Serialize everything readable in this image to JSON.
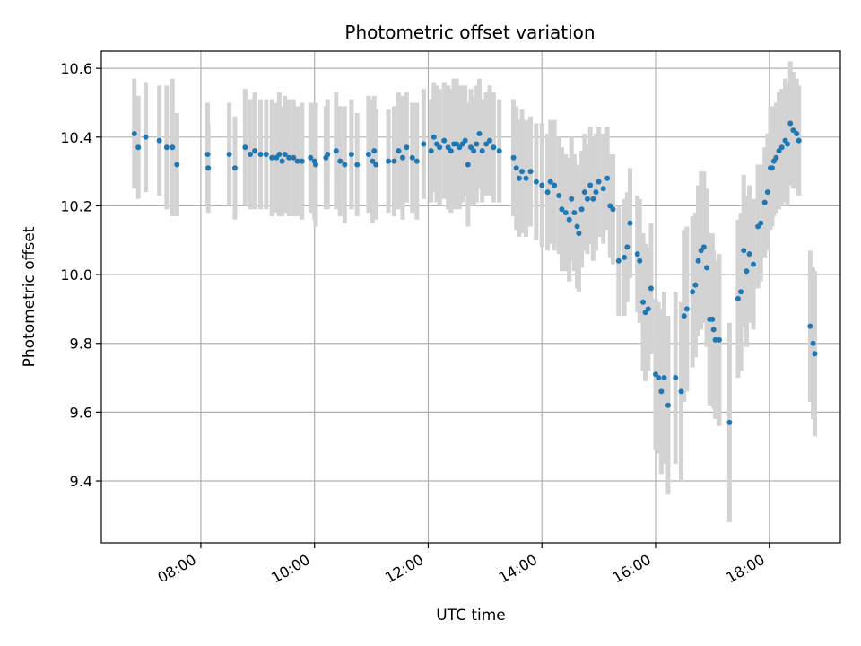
{
  "chart_data": {
    "type": "scatter",
    "title": "Photometric offset variation",
    "xlabel": "UTC time",
    "ylabel": "Photometric offset",
    "x_tick_labels": [
      "08:00",
      "10:00",
      "12:00",
      "14:00",
      "16:00",
      "18:00"
    ],
    "x_tick_hours": [
      8,
      10,
      12,
      14,
      16,
      18
    ],
    "y_ticks": [
      9.4,
      9.6,
      9.8,
      10.0,
      10.2,
      10.4,
      10.6
    ],
    "y_tick_labels": [
      "9.4",
      "9.6",
      "9.8",
      "10.0",
      "10.2",
      "10.4",
      "10.6"
    ],
    "xlim_hours": [
      6.25,
      19.25
    ],
    "ylim": [
      9.22,
      10.65
    ],
    "grid": true,
    "point_color": "#1f77b4",
    "errorbar_color": "#d3d3d3",
    "points": [
      [
        6.83,
        10.41,
        0.16
      ],
      [
        6.9,
        10.37,
        0.15
      ],
      [
        7.03,
        10.4,
        0.16
      ],
      [
        7.27,
        10.39,
        0.16
      ],
      [
        7.4,
        10.37,
        0.18
      ],
      [
        7.5,
        10.37,
        0.2
      ],
      [
        7.58,
        10.32,
        0.15
      ],
      [
        8.12,
        10.35,
        0.15
      ],
      [
        8.13,
        10.31,
        0.13
      ],
      [
        8.5,
        10.35,
        0.15
      ],
      [
        8.6,
        10.31,
        0.15
      ],
      [
        8.78,
        10.37,
        0.17
      ],
      [
        8.87,
        10.35,
        0.16
      ],
      [
        8.95,
        10.36,
        0.17
      ],
      [
        9.05,
        10.35,
        0.16
      ],
      [
        9.15,
        10.35,
        0.16
      ],
      [
        9.25,
        10.34,
        0.17
      ],
      [
        9.33,
        10.34,
        0.16
      ],
      [
        9.38,
        10.35,
        0.18
      ],
      [
        9.43,
        10.33,
        0.16
      ],
      [
        9.48,
        10.35,
        0.17
      ],
      [
        9.55,
        10.34,
        0.17
      ],
      [
        9.63,
        10.34,
        0.17
      ],
      [
        9.7,
        10.33,
        0.16
      ],
      [
        9.78,
        10.33,
        0.17
      ],
      [
        9.93,
        10.34,
        0.16
      ],
      [
        10.0,
        10.33,
        0.17
      ],
      [
        10.02,
        10.32,
        0.18
      ],
      [
        10.2,
        10.34,
        0.15
      ],
      [
        10.23,
        10.35,
        0.16
      ],
      [
        10.38,
        10.36,
        0.17
      ],
      [
        10.45,
        10.33,
        0.16
      ],
      [
        10.53,
        10.32,
        0.17
      ],
      [
        10.65,
        10.35,
        0.16
      ],
      [
        10.75,
        10.32,
        0.15
      ],
      [
        10.95,
        10.35,
        0.17
      ],
      [
        11.02,
        10.33,
        0.18
      ],
      [
        11.05,
        10.36,
        0.16
      ],
      [
        11.08,
        10.32,
        0.16
      ],
      [
        11.3,
        10.33,
        0.15
      ],
      [
        11.4,
        10.33,
        0.16
      ],
      [
        11.48,
        10.36,
        0.17
      ],
      [
        11.55,
        10.34,
        0.18
      ],
      [
        11.62,
        10.37,
        0.16
      ],
      [
        11.72,
        10.34,
        0.16
      ],
      [
        11.8,
        10.33,
        0.17
      ],
      [
        11.92,
        10.38,
        0.16
      ],
      [
        12.05,
        10.36,
        0.15
      ],
      [
        12.1,
        10.4,
        0.16
      ],
      [
        12.15,
        10.38,
        0.17
      ],
      [
        12.2,
        10.37,
        0.17
      ],
      [
        12.28,
        10.39,
        0.17
      ],
      [
        12.35,
        10.37,
        0.18
      ],
      [
        12.4,
        10.36,
        0.18
      ],
      [
        12.45,
        10.38,
        0.19
      ],
      [
        12.5,
        10.38,
        0.19
      ],
      [
        12.55,
        10.37,
        0.18
      ],
      [
        12.6,
        10.38,
        0.17
      ],
      [
        12.65,
        10.39,
        0.16
      ],
      [
        12.7,
        10.32,
        0.18
      ],
      [
        12.75,
        10.37,
        0.17
      ],
      [
        12.8,
        10.36,
        0.16
      ],
      [
        12.85,
        10.38,
        0.17
      ],
      [
        12.9,
        10.41,
        0.16
      ],
      [
        12.95,
        10.36,
        0.15
      ],
      [
        13.02,
        10.38,
        0.15
      ],
      [
        13.08,
        10.39,
        0.16
      ],
      [
        13.15,
        10.37,
        0.16
      ],
      [
        13.25,
        10.36,
        0.15
      ],
      [
        13.5,
        10.34,
        0.17
      ],
      [
        13.55,
        10.31,
        0.18
      ],
      [
        13.6,
        10.28,
        0.17
      ],
      [
        13.65,
        10.3,
        0.18
      ],
      [
        13.72,
        10.28,
        0.17
      ],
      [
        13.8,
        10.3,
        0.16
      ],
      [
        13.9,
        10.27,
        0.17
      ],
      [
        14.0,
        10.26,
        0.18
      ],
      [
        14.1,
        10.24,
        0.17
      ],
      [
        14.15,
        10.27,
        0.18
      ],
      [
        14.22,
        10.26,
        0.19
      ],
      [
        14.3,
        10.23,
        0.17
      ],
      [
        14.35,
        10.19,
        0.18
      ],
      [
        14.42,
        10.18,
        0.17
      ],
      [
        14.48,
        10.16,
        0.18
      ],
      [
        14.52,
        10.22,
        0.18
      ],
      [
        14.57,
        10.18,
        0.17
      ],
      [
        14.62,
        10.14,
        0.18
      ],
      [
        14.65,
        10.12,
        0.17
      ],
      [
        14.7,
        10.19,
        0.17
      ],
      [
        14.75,
        10.24,
        0.17
      ],
      [
        14.8,
        10.22,
        0.16
      ],
      [
        14.85,
        10.26,
        0.17
      ],
      [
        14.9,
        10.22,
        0.18
      ],
      [
        14.95,
        10.24,
        0.17
      ],
      [
        15.0,
        10.27,
        0.16
      ],
      [
        15.08,
        10.25,
        0.16
      ],
      [
        15.15,
        10.28,
        0.15
      ],
      [
        15.2,
        10.2,
        0.15
      ],
      [
        15.25,
        10.19,
        0.16
      ],
      [
        15.35,
        10.04,
        0.16
      ],
      [
        15.45,
        10.05,
        0.17
      ],
      [
        15.5,
        10.08,
        0.16
      ],
      [
        15.55,
        10.15,
        0.16
      ],
      [
        15.68,
        10.06,
        0.17
      ],
      [
        15.72,
        10.04,
        0.18
      ],
      [
        15.78,
        9.92,
        0.2
      ],
      [
        15.82,
        9.89,
        0.2
      ],
      [
        15.87,
        9.9,
        0.18
      ],
      [
        15.92,
        9.96,
        0.19
      ],
      [
        16.0,
        9.71,
        0.22
      ],
      [
        16.05,
        9.7,
        0.22
      ],
      [
        16.1,
        9.66,
        0.24
      ],
      [
        16.15,
        9.7,
        0.25
      ],
      [
        16.22,
        9.62,
        0.26
      ],
      [
        16.35,
        9.7,
        0.25
      ],
      [
        16.45,
        9.66,
        0.26
      ],
      [
        16.5,
        9.88,
        0.25
      ],
      [
        16.55,
        9.9,
        0.24
      ],
      [
        16.65,
        9.95,
        0.22
      ],
      [
        16.7,
        9.97,
        0.21
      ],
      [
        16.75,
        10.04,
        0.22
      ],
      [
        16.8,
        10.07,
        0.23
      ],
      [
        16.85,
        10.08,
        0.22
      ],
      [
        16.9,
        10.02,
        0.23
      ],
      [
        16.95,
        9.87,
        0.25
      ],
      [
        17.0,
        9.87,
        0.25
      ],
      [
        17.02,
        9.84,
        0.23
      ],
      [
        17.05,
        9.81,
        0.23
      ],
      [
        17.12,
        9.81,
        0.25
      ],
      [
        17.3,
        9.57,
        0.29
      ],
      [
        17.45,
        9.93,
        0.23
      ],
      [
        17.5,
        9.95,
        0.23
      ],
      [
        17.55,
        10.07,
        0.22
      ],
      [
        17.6,
        10.01,
        0.22
      ],
      [
        17.65,
        10.06,
        0.2
      ],
      [
        17.72,
        10.03,
        0.19
      ],
      [
        17.8,
        10.14,
        0.18
      ],
      [
        17.85,
        10.15,
        0.17
      ],
      [
        17.92,
        10.21,
        0.16
      ],
      [
        17.97,
        10.24,
        0.17
      ],
      [
        18.02,
        10.31,
        0.18
      ],
      [
        18.05,
        10.31,
        0.17
      ],
      [
        18.08,
        10.33,
        0.16
      ],
      [
        18.12,
        10.34,
        0.16
      ],
      [
        18.17,
        10.36,
        0.17
      ],
      [
        18.22,
        10.37,
        0.17
      ],
      [
        18.28,
        10.39,
        0.18
      ],
      [
        18.32,
        10.38,
        0.18
      ],
      [
        18.37,
        10.44,
        0.18
      ],
      [
        18.42,
        10.42,
        0.17
      ],
      [
        18.48,
        10.41,
        0.16
      ],
      [
        18.52,
        10.39,
        0.16
      ],
      [
        18.72,
        9.85,
        0.22
      ],
      [
        18.77,
        9.8,
        0.22
      ],
      [
        18.8,
        9.77,
        0.24
      ]
    ]
  }
}
